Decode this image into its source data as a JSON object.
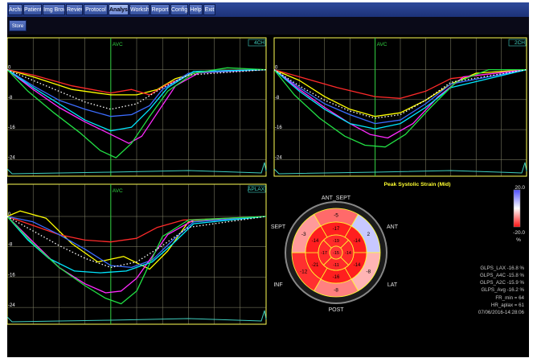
{
  "tabs": [
    {
      "label": "Archive",
      "active": false
    },
    {
      "label": "Patient",
      "active": false
    },
    {
      "label": "Img Browser",
      "active": false
    },
    {
      "label": "Review",
      "active": false
    },
    {
      "label": "Protocol",
      "active": false
    },
    {
      "label": "Analysis",
      "active": true
    },
    {
      "label": "Worksheet",
      "active": false
    },
    {
      "label": "Report",
      "active": false
    },
    {
      "label": "Config",
      "active": false
    },
    {
      "label": "Help",
      "active": false
    },
    {
      "label": "Exit",
      "active": false
    }
  ],
  "store_label": "Store",
  "panels": {
    "p4ch": {
      "view_label": "4CH",
      "avc_label": "AVC",
      "y_ticks": [
        "0",
        "-8",
        "-16",
        "-24"
      ],
      "curve_colors": [
        "#ffff00",
        "#ff2a2a",
        "#3b6cff",
        "#ff2bff",
        "#00e8ff",
        "#22e044",
        "#ffffff"
      ]
    },
    "p2ch": {
      "view_label": "2CH",
      "avc_label": "AVC",
      "y_ticks": [
        "0",
        "-8",
        "-16",
        "-24"
      ],
      "curve_colors": [
        "#ffff00",
        "#ff2a2a",
        "#3b6cff",
        "#ff2bff",
        "#00e8ff",
        "#22e044",
        "#ffffff"
      ]
    },
    "plax": {
      "view_label": "APLAX",
      "avc_label": "AVC",
      "y_ticks": [
        "0",
        "-8",
        "-16",
        "-24"
      ],
      "curve_colors": [
        "#ffff00",
        "#ff2a2a",
        "#3b6cff",
        "#ff2bff",
        "#00e8ff",
        "#22e044",
        "#ffffff"
      ]
    }
  },
  "bullseye": {
    "title": "Peak Systolic Strain (Mid)",
    "scale_max": "20.0",
    "scale_min": "-20.0",
    "scale_unit": "%",
    "labels": {
      "ant_sept": "ANT_SEPT",
      "ant": "ANT",
      "lat": "LAT",
      "post": "POST",
      "inf": "INF",
      "sept": "SEPT"
    },
    "outer_values": [
      "-5",
      "2",
      "-8",
      "-8",
      "-12",
      "-3"
    ],
    "mid_values": [
      "-17",
      "-14",
      "-14",
      "-16",
      "-21",
      "-14"
    ],
    "apical_values": [
      "-19",
      "-14",
      "-11",
      "-17"
    ],
    "cap_value": "-15"
  },
  "stats": {
    "glps_lax": "GLPS_LAX  -16.8 %",
    "glps_a4c": "GLPS_A4C  -15.8 %",
    "glps_a2c": "GLPS_A2C  -15.9 %",
    "glps_avg": "GLPS_Avg  -16.2 %",
    "fr_min": "FR_min = 64",
    "hr_aplax": "HR_aplax = 61",
    "datetime": "07/06/2016-14:28:06"
  },
  "colors": {
    "grid": "#c8c8a0",
    "frame": "#ffff55",
    "avc_line": "#30d040",
    "ecg": "#40d0c0",
    "strain_strong": "#ff1a1a",
    "strain_weak": "#aab0ff"
  }
}
